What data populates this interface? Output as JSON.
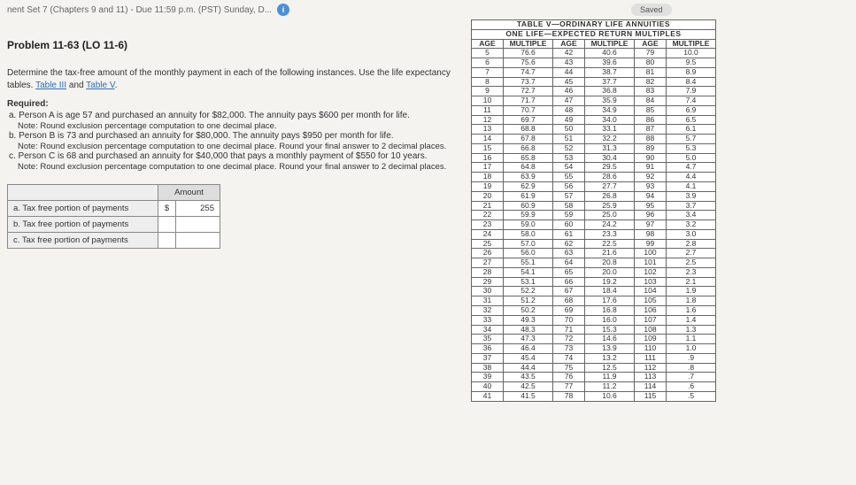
{
  "header": {
    "title": "nent Set 7 (Chapters 9 and 11) - Due 11:59 p.m. (PST) Sunday, D...",
    "info_icon": "i",
    "saved": "Saved"
  },
  "problem": {
    "title": "Problem 11-63 (LO 11-6)",
    "intro": "Determine the tax-free amount of the monthly payment in each of the following instances. Use the life expectancy tables.",
    "link1": "Table III",
    "and": " and ",
    "link2": "Table V",
    "period": "."
  },
  "required": {
    "heading": "Required:",
    "a": "a. Person A is age 57 and purchased an annuity for $82,000. The annuity pays $600 per month for life.",
    "a_note": "Note: Round exclusion percentage computation to one decimal place.",
    "b": "b. Person B is 73 and purchased an annuity for $80,000. The annuity pays $950 per month for life.",
    "b_note": "Note: Round exclusion percentage computation to one decimal place. Round your final answer to 2 decimal places.",
    "c": "c. Person C is 68 and purchased an annuity for $40,000 that pays a monthly payment of $550 for 10 years.",
    "c_note": "Note: Round exclusion percentage computation to one decimal place. Round your final answer to 2 decimal places."
  },
  "answer_table": {
    "amount_hdr": "Amount",
    "rows": [
      {
        "label": "a. Tax free portion of payments",
        "cur": "$",
        "val": "255"
      },
      {
        "label": "b. Tax free portion of payments",
        "cur": "",
        "val": ""
      },
      {
        "label": "c. Tax free portion of payments",
        "cur": "",
        "val": ""
      }
    ]
  },
  "table": {
    "title1": "TABLE V—ORDINARY LIFE ANNUITIES",
    "title2": "ONE LIFE—EXPECTED RETURN MULTIPLES",
    "h_age": "AGE",
    "h_mult": "MULTIPLE",
    "rows": [
      [
        "5",
        "76.6",
        "42",
        "40.6",
        "79",
        "10.0"
      ],
      [
        "6",
        "75.6",
        "43",
        "39.6",
        "80",
        "9.5"
      ],
      [
        "7",
        "74.7",
        "44",
        "38.7",
        "81",
        "8.9"
      ],
      [
        "8",
        "73.7",
        "45",
        "37.7",
        "82",
        "8.4"
      ],
      [
        "9",
        "72.7",
        "46",
        "36.8",
        "83",
        "7.9"
      ],
      [
        "10",
        "71.7",
        "47",
        "35.9",
        "84",
        "7.4"
      ],
      [
        "11",
        "70.7",
        "48",
        "34.9",
        "85",
        "6.9"
      ],
      [
        "12",
        "69.7",
        "49",
        "34.0",
        "86",
        "6.5"
      ],
      [
        "13",
        "68.8",
        "50",
        "33.1",
        "87",
        "6.1"
      ],
      [
        "14",
        "67.8",
        "51",
        "32.2",
        "88",
        "5.7"
      ],
      [
        "15",
        "66.8",
        "52",
        "31.3",
        "89",
        "5.3"
      ],
      [
        "16",
        "65.8",
        "53",
        "30.4",
        "90",
        "5.0"
      ],
      [
        "17",
        "64.8",
        "54",
        "29.5",
        "91",
        "4.7"
      ],
      [
        "18",
        "63.9",
        "55",
        "28.6",
        "92",
        "4.4"
      ],
      [
        "19",
        "62.9",
        "56",
        "27.7",
        "93",
        "4.1"
      ],
      [
        "20",
        "61.9",
        "57",
        "26.8",
        "94",
        "3.9"
      ],
      [
        "21",
        "60.9",
        "58",
        "25.9",
        "95",
        "3.7"
      ],
      [
        "22",
        "59.9",
        "59",
        "25.0",
        "96",
        "3.4"
      ],
      [
        "23",
        "59.0",
        "60",
        "24.2",
        "97",
        "3.2"
      ],
      [
        "24",
        "58.0",
        "61",
        "23.3",
        "98",
        "3.0"
      ],
      [
        "25",
        "57.0",
        "62",
        "22.5",
        "99",
        "2.8"
      ],
      [
        "26",
        "56.0",
        "63",
        "21.6",
        "100",
        "2.7"
      ],
      [
        "27",
        "55.1",
        "64",
        "20.8",
        "101",
        "2.5"
      ],
      [
        "28",
        "54.1",
        "65",
        "20.0",
        "102",
        "2.3"
      ],
      [
        "29",
        "53.1",
        "66",
        "19.2",
        "103",
        "2.1"
      ],
      [
        "30",
        "52.2",
        "67",
        "18.4",
        "104",
        "1.9"
      ],
      [
        "31",
        "51.2",
        "68",
        "17.6",
        "105",
        "1.8"
      ],
      [
        "32",
        "50.2",
        "69",
        "16.8",
        "106",
        "1.6"
      ],
      [
        "33",
        "49.3",
        "70",
        "16.0",
        "107",
        "1.4"
      ],
      [
        "34",
        "48.3",
        "71",
        "15.3",
        "108",
        "1.3"
      ],
      [
        "35",
        "47.3",
        "72",
        "14.6",
        "109",
        "1.1"
      ],
      [
        "36",
        "46.4",
        "73",
        "13.9",
        "110",
        "1.0"
      ],
      [
        "37",
        "45.4",
        "74",
        "13.2",
        "111",
        ".9"
      ],
      [
        "38",
        "44.4",
        "75",
        "12.5",
        "112",
        ".8"
      ],
      [
        "39",
        "43.5",
        "76",
        "11.9",
        "113",
        ".7"
      ],
      [
        "40",
        "42.5",
        "77",
        "11.2",
        "114",
        ".6"
      ],
      [
        "41",
        "41.5",
        "78",
        "10.6",
        "115",
        ".5"
      ]
    ]
  }
}
